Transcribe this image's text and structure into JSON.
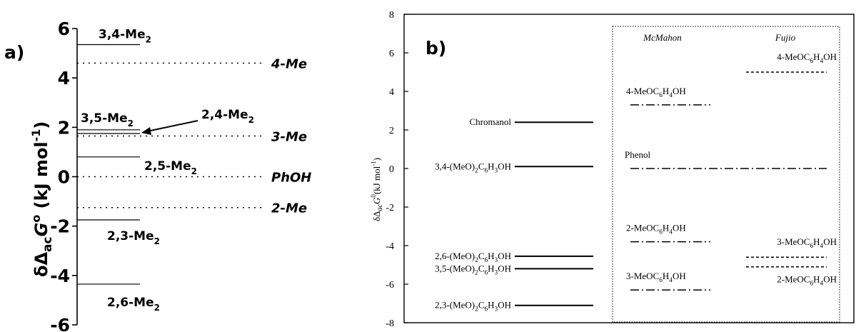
{
  "panel_labels": {
    "a": "a)",
    "b": "b)"
  },
  "chart_data": [
    {
      "type": "energy-level",
      "panel": "a)",
      "ylabel": {
        "prefix": "δΔ",
        "sub": "ac",
        "G": "G",
        "sup": "o",
        "units": " (kJ mol",
        "units_sup": "-1",
        "close": ")"
      },
      "ylim": [
        -6,
        6
      ],
      "yticks": [
        "6",
        "4",
        "2",
        "0",
        "-2",
        "-4",
        "-6"
      ],
      "tick_values": [
        6,
        4,
        2,
        0,
        -2,
        -4,
        -6
      ],
      "solid_levels": [
        {
          "value": 5.35,
          "label_main": "3,4-Me",
          "label_sub": "2"
        },
        {
          "value": 1.9,
          "label_main": "3,5-Me",
          "label_sub": "2"
        },
        {
          "value": 1.75,
          "label_main": "2,4-Me",
          "label_sub": "2"
        },
        {
          "value": 0.8,
          "label_main": "2,5-Me",
          "label_sub": "2"
        },
        {
          "value": -1.75,
          "label_main": "2,3-Me",
          "label_sub": "2"
        },
        {
          "value": -4.35,
          "label_main": "2,6-Me",
          "label_sub": "2"
        }
      ],
      "dotted_levels": [
        {
          "value": 4.6,
          "label": "4-Me"
        },
        {
          "value": 1.65,
          "label": "3-Me"
        },
        {
          "value": 0.0,
          "label": "PhOH"
        },
        {
          "value": -1.25,
          "label": "2-Me"
        }
      ]
    },
    {
      "type": "energy-level",
      "panel": "b)",
      "ylabel": {
        "prefix": "δΔ",
        "sub": "ac",
        "G": "G",
        "sup": "0",
        "units": "(kJ mol",
        "units_sup": "-1",
        "close": ")"
      },
      "ylim": [
        -8,
        8
      ],
      "yticks": [
        "8",
        "6",
        "4",
        "2",
        "0",
        "-2",
        "-4",
        "-6",
        "-8"
      ],
      "tick_values": [
        8,
        6,
        4,
        2,
        0,
        -2,
        -4,
        -6,
        -8
      ],
      "group_titles": {
        "mcmahon": "McMahon",
        "fujio": "Fujio"
      },
      "methoxy_levels": [
        {
          "value": 2.4,
          "label": "Chromanol"
        },
        {
          "value": 0.1,
          "label": "3,4-(MeO)2C6H3OH",
          "parts": [
            "3,4-(MeO)",
            "2",
            "C",
            "6",
            "H",
            "3",
            "OH"
          ]
        },
        {
          "value": -4.55,
          "label": "2,6-(MeO)2C6H3OH",
          "parts": [
            "2,6-(MeO)",
            "2",
            "C",
            "6",
            "H",
            "3",
            "OH"
          ]
        },
        {
          "value": -5.2,
          "label": "3,5-(MeO)2C6H3OH",
          "parts": [
            "3,5-(MeO)",
            "2",
            "C",
            "6",
            "H",
            "3",
            "OH"
          ]
        },
        {
          "value": -7.1,
          "label": "2,3-(MeO)2C6H3OH",
          "parts": [
            "2,3-(MeO)",
            "2",
            "C",
            "6",
            "H",
            "3",
            "OH"
          ]
        }
      ],
      "mcmahon_levels": [
        {
          "value": 3.3,
          "label": "4-MeOC6H4OH",
          "parts": [
            "4-MeOC",
            "6",
            "H",
            "4",
            "OH"
          ]
        },
        {
          "value": 0.0,
          "label": "Phenol"
        },
        {
          "value": -3.8,
          "label": "2-MeOC6H4OH",
          "parts": [
            "2-MeOC",
            "6",
            "H",
            "4",
            "OH"
          ]
        },
        {
          "value": -6.3,
          "label": "3-MeOC6H4OH",
          "parts": [
            "3-MeOC",
            "6",
            "H",
            "4",
            "OH"
          ]
        }
      ],
      "fujio_levels": [
        {
          "value": 5.0,
          "label": "4-MeOC6H4OH",
          "parts": [
            "4-MeOC",
            "6",
            "H",
            "4",
            "OH"
          ]
        },
        {
          "value": -4.6,
          "label": "3-MeOC6H4OH",
          "parts": [
            "3-MeOC",
            "6",
            "H",
            "4",
            "OH"
          ]
        },
        {
          "value": -5.1,
          "label": "2-MeOC6H4OH",
          "parts": [
            "2-MeOC",
            "6",
            "H",
            "4",
            "OH"
          ]
        }
      ]
    }
  ]
}
